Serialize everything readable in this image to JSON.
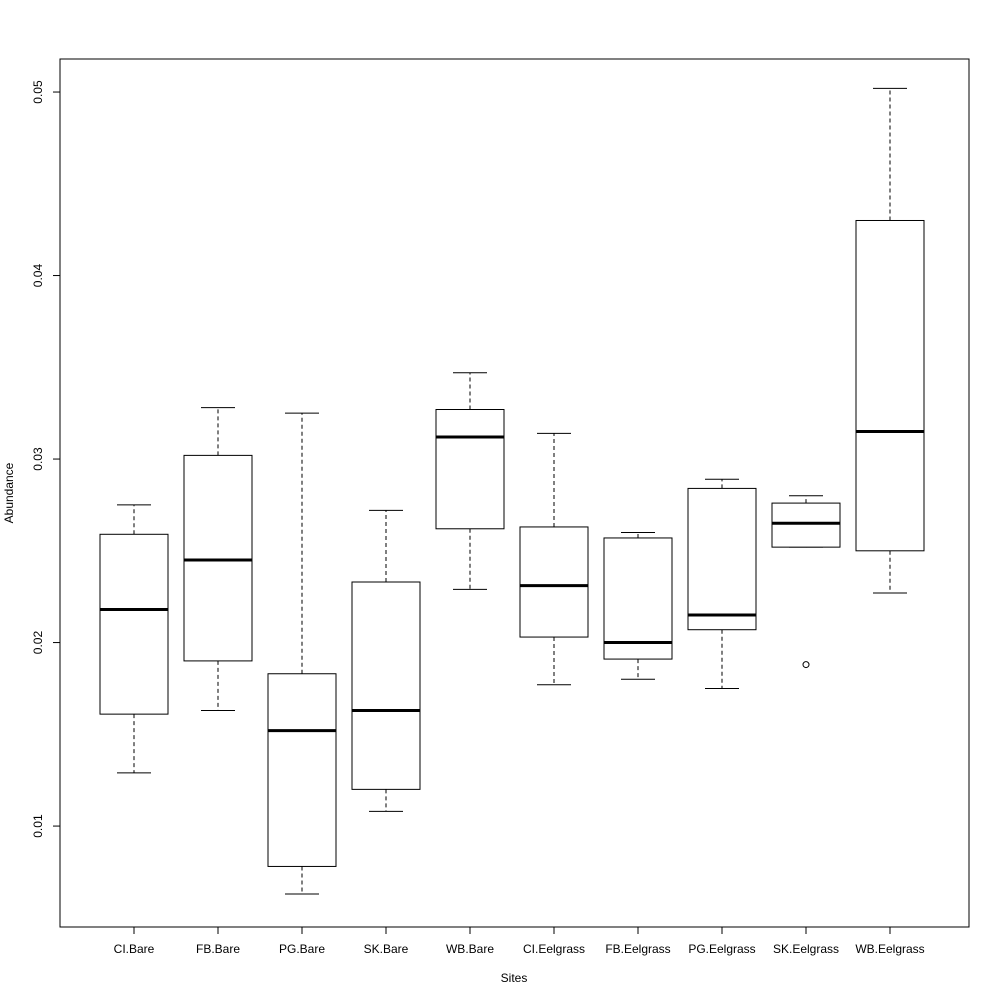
{
  "chart_data": {
    "type": "boxplot",
    "title": "",
    "xlabel": "Sites",
    "ylabel": "Abundance",
    "ylim": [
      0.0045,
      0.0518
    ],
    "yticks": [
      0.01,
      0.02,
      0.03,
      0.04,
      0.05
    ],
    "ytick_labels": [
      "0.01",
      "0.02",
      "0.03",
      "0.04",
      "0.05"
    ],
    "grid": false,
    "categories": [
      "CI.Bare",
      "FB.Bare",
      "PG.Bare",
      "SK.Bare",
      "WB.Bare",
      "CI.Eelgrass",
      "FB.Eelgrass",
      "PG.Eelgrass",
      "SK.Eelgrass",
      "WB.Eelgrass"
    ],
    "boxes": [
      {
        "label": "CI.Bare",
        "whisker_low": 0.0129,
        "q1": 0.0161,
        "median": 0.0218,
        "q3": 0.0259,
        "whisker_high": 0.0275,
        "outliers": []
      },
      {
        "label": "FB.Bare",
        "whisker_low": 0.0163,
        "q1": 0.019,
        "median": 0.0245,
        "q3": 0.0302,
        "whisker_high": 0.0328,
        "outliers": []
      },
      {
        "label": "PG.Bare",
        "whisker_low": 0.0063,
        "q1": 0.0078,
        "median": 0.0152,
        "q3": 0.0183,
        "whisker_high": 0.0325,
        "outliers": []
      },
      {
        "label": "SK.Bare",
        "whisker_low": 0.0108,
        "q1": 0.012,
        "median": 0.0163,
        "q3": 0.0233,
        "whisker_high": 0.0272,
        "outliers": []
      },
      {
        "label": "WB.Bare",
        "whisker_low": 0.0229,
        "q1": 0.0262,
        "median": 0.0312,
        "q3": 0.0327,
        "whisker_high": 0.0347,
        "outliers": []
      },
      {
        "label": "CI.Eelgrass",
        "whisker_low": 0.0177,
        "q1": 0.0203,
        "median": 0.0231,
        "q3": 0.0263,
        "whisker_high": 0.0314,
        "outliers": []
      },
      {
        "label": "FB.Eelgrass",
        "whisker_low": 0.018,
        "q1": 0.0191,
        "median": 0.02,
        "q3": 0.0257,
        "whisker_high": 0.026,
        "outliers": []
      },
      {
        "label": "PG.Eelgrass",
        "whisker_low": 0.0175,
        "q1": 0.0207,
        "median": 0.0215,
        "q3": 0.0284,
        "whisker_high": 0.0289,
        "outliers": []
      },
      {
        "label": "SK.Eelgrass",
        "whisker_low": 0.0252,
        "q1": 0.0252,
        "median": 0.0265,
        "q3": 0.0276,
        "whisker_high": 0.028,
        "outliers": [
          0.0188
        ]
      },
      {
        "label": "WB.Eelgrass",
        "whisker_low": 0.0227,
        "q1": 0.025,
        "median": 0.0315,
        "q3": 0.043,
        "whisker_high": 0.0502,
        "outliers": []
      }
    ]
  }
}
